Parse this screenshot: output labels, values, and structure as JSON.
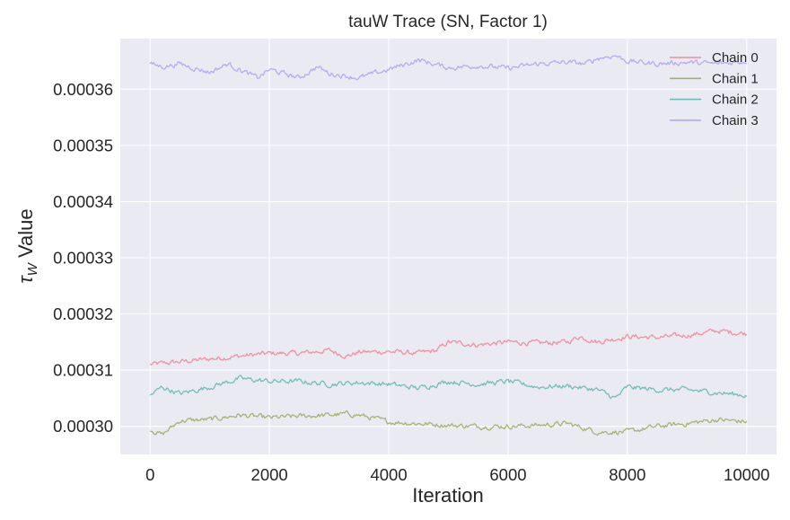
{
  "chart_data": {
    "type": "line",
    "title": "tauW Trace (SN, Factor 1)",
    "xlabel": "Iteration",
    "ylabel_symbol": "τ",
    "ylabel_subscript": "W",
    "ylabel_rest": " Value",
    "xlim": [
      -500,
      10500
    ],
    "ylim": [
      0.000295,
      0.000369
    ],
    "xticks": [
      0,
      2000,
      4000,
      6000,
      8000,
      10000
    ],
    "xtick_labels": [
      "0",
      "2000",
      "4000",
      "6000",
      "8000",
      "10000"
    ],
    "yticks": [
      0.0003,
      0.00031,
      0.00032,
      0.00033,
      0.00034,
      0.00035,
      0.00036
    ],
    "ytick_labels": [
      "0.00030",
      "0.00031",
      "0.00032",
      "0.00033",
      "0.00034",
      "0.00035",
      "0.00036"
    ],
    "grid": true,
    "legend_position": "top-right",
    "series": [
      {
        "name": "Chain 0",
        "color": "#f08c9c",
        "x": [
          0,
          500,
          1000,
          1500,
          2000,
          2500,
          3000,
          3300,
          3500,
          4000,
          4500,
          4800,
          5000,
          5500,
          6000,
          6500,
          7000,
          7200,
          7500,
          8000,
          8500,
          9000,
          9500,
          10000
        ],
        "y": [
          0.000311,
          0.0003115,
          0.000312,
          0.0003125,
          0.000313,
          0.000313,
          0.0003135,
          0.0003125,
          0.0003132,
          0.0003133,
          0.000313,
          0.0003135,
          0.000315,
          0.0003145,
          0.000315,
          0.0003148,
          0.000315,
          0.000316,
          0.000315,
          0.000316,
          0.0003158,
          0.0003162,
          0.000317,
          0.0003165
        ]
      },
      {
        "name": "Chain 1",
        "color": "#a4b06a",
        "x": [
          0,
          200,
          500,
          1000,
          1500,
          2000,
          2500,
          3000,
          3300,
          3500,
          4000,
          4500,
          5000,
          5500,
          6000,
          6500,
          7000,
          7500,
          8000,
          8500,
          9000,
          9500,
          10000
        ],
        "y": [
          0.0002995,
          0.0002985,
          0.000301,
          0.0003012,
          0.000302,
          0.0003015,
          0.0003018,
          0.000302,
          0.0003022,
          0.000302,
          0.0003008,
          0.0003005,
          0.0003002,
          0.0003,
          0.0003,
          0.0003002,
          0.0003005,
          0.000299,
          0.000299,
          0.0003,
          0.0003005,
          0.0003012,
          0.0003008
        ]
      },
      {
        "name": "Chain 2",
        "color": "#6ebcb4",
        "x": [
          0,
          200,
          500,
          1000,
          1500,
          2000,
          2500,
          3000,
          3500,
          4000,
          4500,
          5000,
          5500,
          6000,
          6500,
          7000,
          7500,
          7800,
          8000,
          8500,
          9000,
          9500,
          10000
        ],
        "y": [
          0.0003055,
          0.000307,
          0.0003058,
          0.000307,
          0.0003085,
          0.000308,
          0.000308,
          0.0003075,
          0.0003078,
          0.0003075,
          0.0003068,
          0.000308,
          0.0003075,
          0.000308,
          0.000307,
          0.0003072,
          0.0003065,
          0.000305,
          0.000307,
          0.0003065,
          0.0003065,
          0.000306,
          0.0003055
        ]
      },
      {
        "name": "Chain 3",
        "color": "#b4a8ee",
        "x": [
          0,
          200,
          500,
          1000,
          1300,
          1500,
          1800,
          2000,
          2500,
          2800,
          3000,
          3200,
          3500,
          4000,
          4500,
          5000,
          5500,
          6000,
          6500,
          7000,
          7300,
          7500,
          7800,
          8000,
          8500,
          9000,
          9500,
          10000
        ],
        "y": [
          0.0003645,
          0.000364,
          0.0003645,
          0.000363,
          0.0003645,
          0.0003635,
          0.000362,
          0.0003635,
          0.000362,
          0.000364,
          0.0003628,
          0.0003625,
          0.000362,
          0.0003635,
          0.0003652,
          0.0003638,
          0.0003642,
          0.0003637,
          0.0003645,
          0.0003648,
          0.0003645,
          0.0003655,
          0.000366,
          0.000365,
          0.0003645,
          0.0003648,
          0.0003645,
          0.000365
        ]
      }
    ]
  }
}
